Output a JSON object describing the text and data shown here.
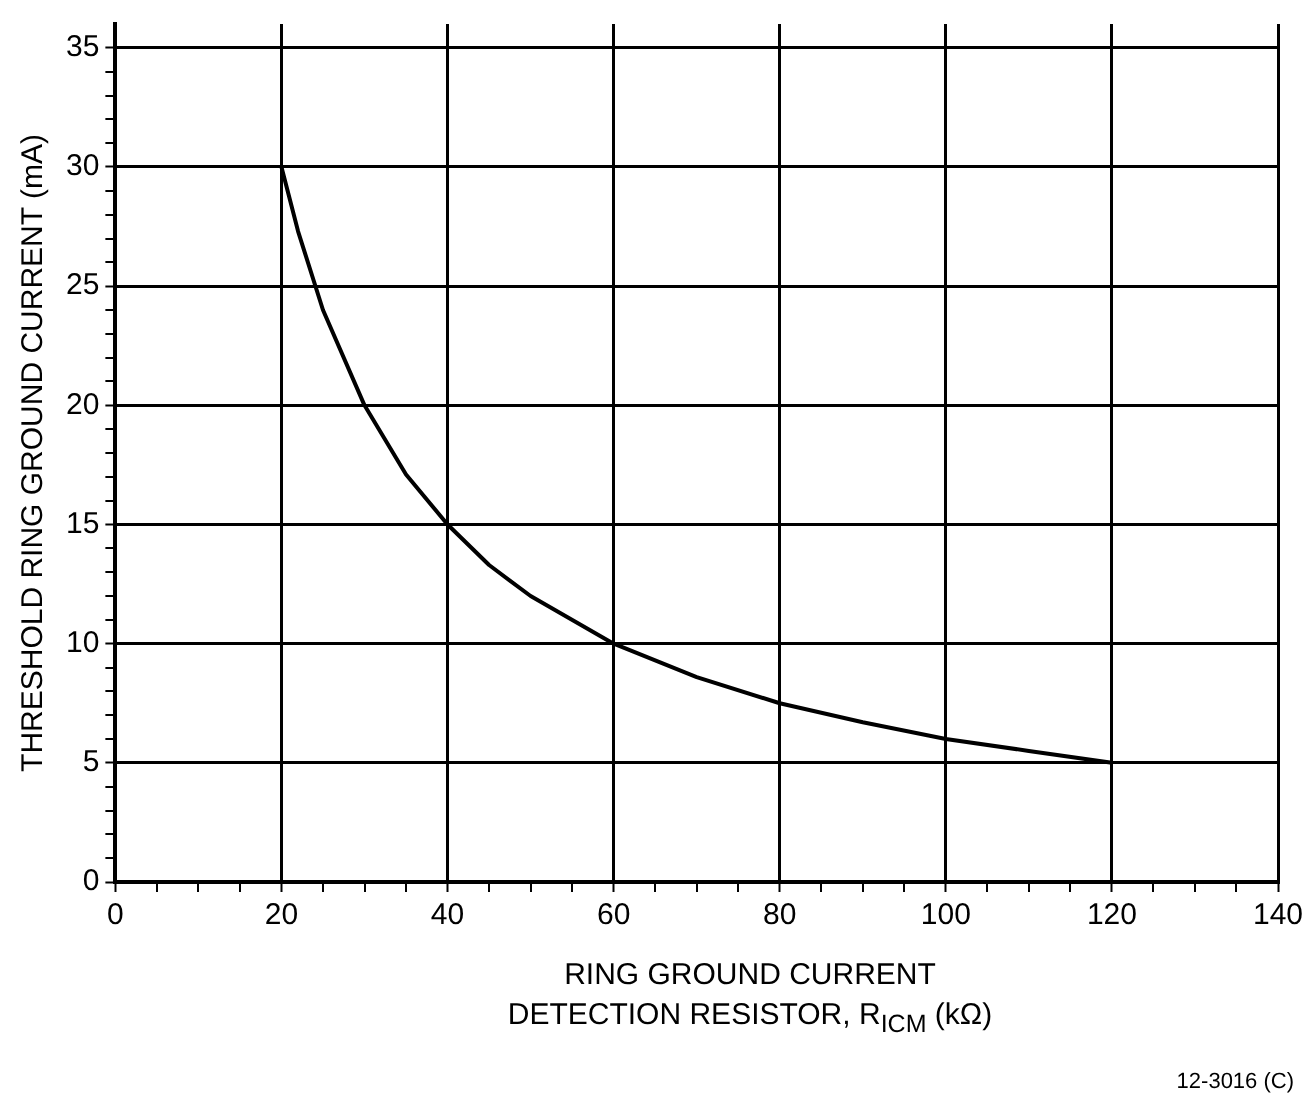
{
  "chart_data": {
    "type": "line",
    "xlabel": "RING GROUND CURRENT\nDETECTION RESISTOR, R$_{ICM}$ (kΩ)",
    "ylabel": "THRESHOLD RING GROUND CURRENT (mA)",
    "annotations": [
      "12-3016 (C)"
    ],
    "x": [
      20,
      22,
      25,
      30,
      35,
      40,
      45,
      50,
      60,
      70,
      80,
      90,
      100,
      110,
      120
    ],
    "series": [
      {
        "color": "#000000",
        "values": [
          30,
          27.3,
          24,
          20,
          17.1,
          15,
          13.3,
          12,
          10,
          8.6,
          7.5,
          6.7,
          6,
          5.5,
          5
        ]
      }
    ],
    "xlim": [
      0,
      140
    ],
    "xticks": [
      0,
      {
        "value": 5,
        "label": null
      },
      {
        "value": 10,
        "label": null
      },
      {
        "value": 15,
        "label": null
      },
      20,
      {
        "value": 25,
        "label": null
      },
      {
        "value": 30,
        "label": null
      },
      {
        "value": 35,
        "label": null
      },
      40,
      {
        "value": 45,
        "label": null
      },
      {
        "value": 50,
        "label": null
      },
      {
        "value": 55,
        "label": null
      },
      60,
      {
        "value": 65,
        "label": null
      },
      {
        "value": 70,
        "label": null
      },
      {
        "value": 75,
        "label": null
      },
      80,
      {
        "value": 85,
        "label": null
      },
      {
        "value": 90,
        "label": null
      },
      {
        "value": 95,
        "label": null
      },
      100,
      {
        "value": 105,
        "label": null
      },
      {
        "value": 110,
        "label": null
      },
      {
        "value": 115,
        "label": null
      },
      120,
      {
        "value": 125,
        "label": null
      },
      {
        "value": 130,
        "label": null
      },
      {
        "value": 135,
        "label": null
      },
      140
    ],
    "ylim": [
      0,
      36
    ],
    "yticks": [
      0,
      {
        "value": 1,
        "label": null
      },
      {
        "value": 2,
        "label": null
      },
      {
        "value": 3,
        "label": null
      },
      {
        "value": 4,
        "label": null
      },
      5,
      {
        "value": 6,
        "label": null
      },
      {
        "value": 7,
        "label": null
      },
      {
        "value": 8,
        "label": null
      },
      {
        "value": 9,
        "label": null
      },
      10,
      {
        "value": 11,
        "label": null
      },
      {
        "value": 12,
        "label": null
      },
      {
        "value": 13,
        "label": null
      },
      {
        "value": 14,
        "label": null
      },
      15,
      {
        "value": 16,
        "label": null
      },
      {
        "value": 17,
        "label": null
      },
      {
        "value": 18,
        "label": null
      },
      {
        "value": 19,
        "label": null
      },
      20,
      {
        "value": 21,
        "label": null
      },
      {
        "value": 22,
        "label": null
      },
      {
        "value": 23,
        "label": null
      },
      {
        "value": 24,
        "label": null
      },
      25,
      {
        "value": 26,
        "label": null
      },
      {
        "value": 27,
        "label": null
      },
      {
        "value": 28,
        "label": null
      },
      {
        "value": 29,
        "label": null
      },
      30,
      {
        "value": 31,
        "label": null
      },
      {
        "value": 32,
        "label": null
      },
      {
        "value": 33,
        "label": null
      },
      {
        "value": 34,
        "label": null
      },
      35
    ],
    "grid": true,
    "legend": false,
    "marker": "none",
    "line_style": "solid"
  }
}
